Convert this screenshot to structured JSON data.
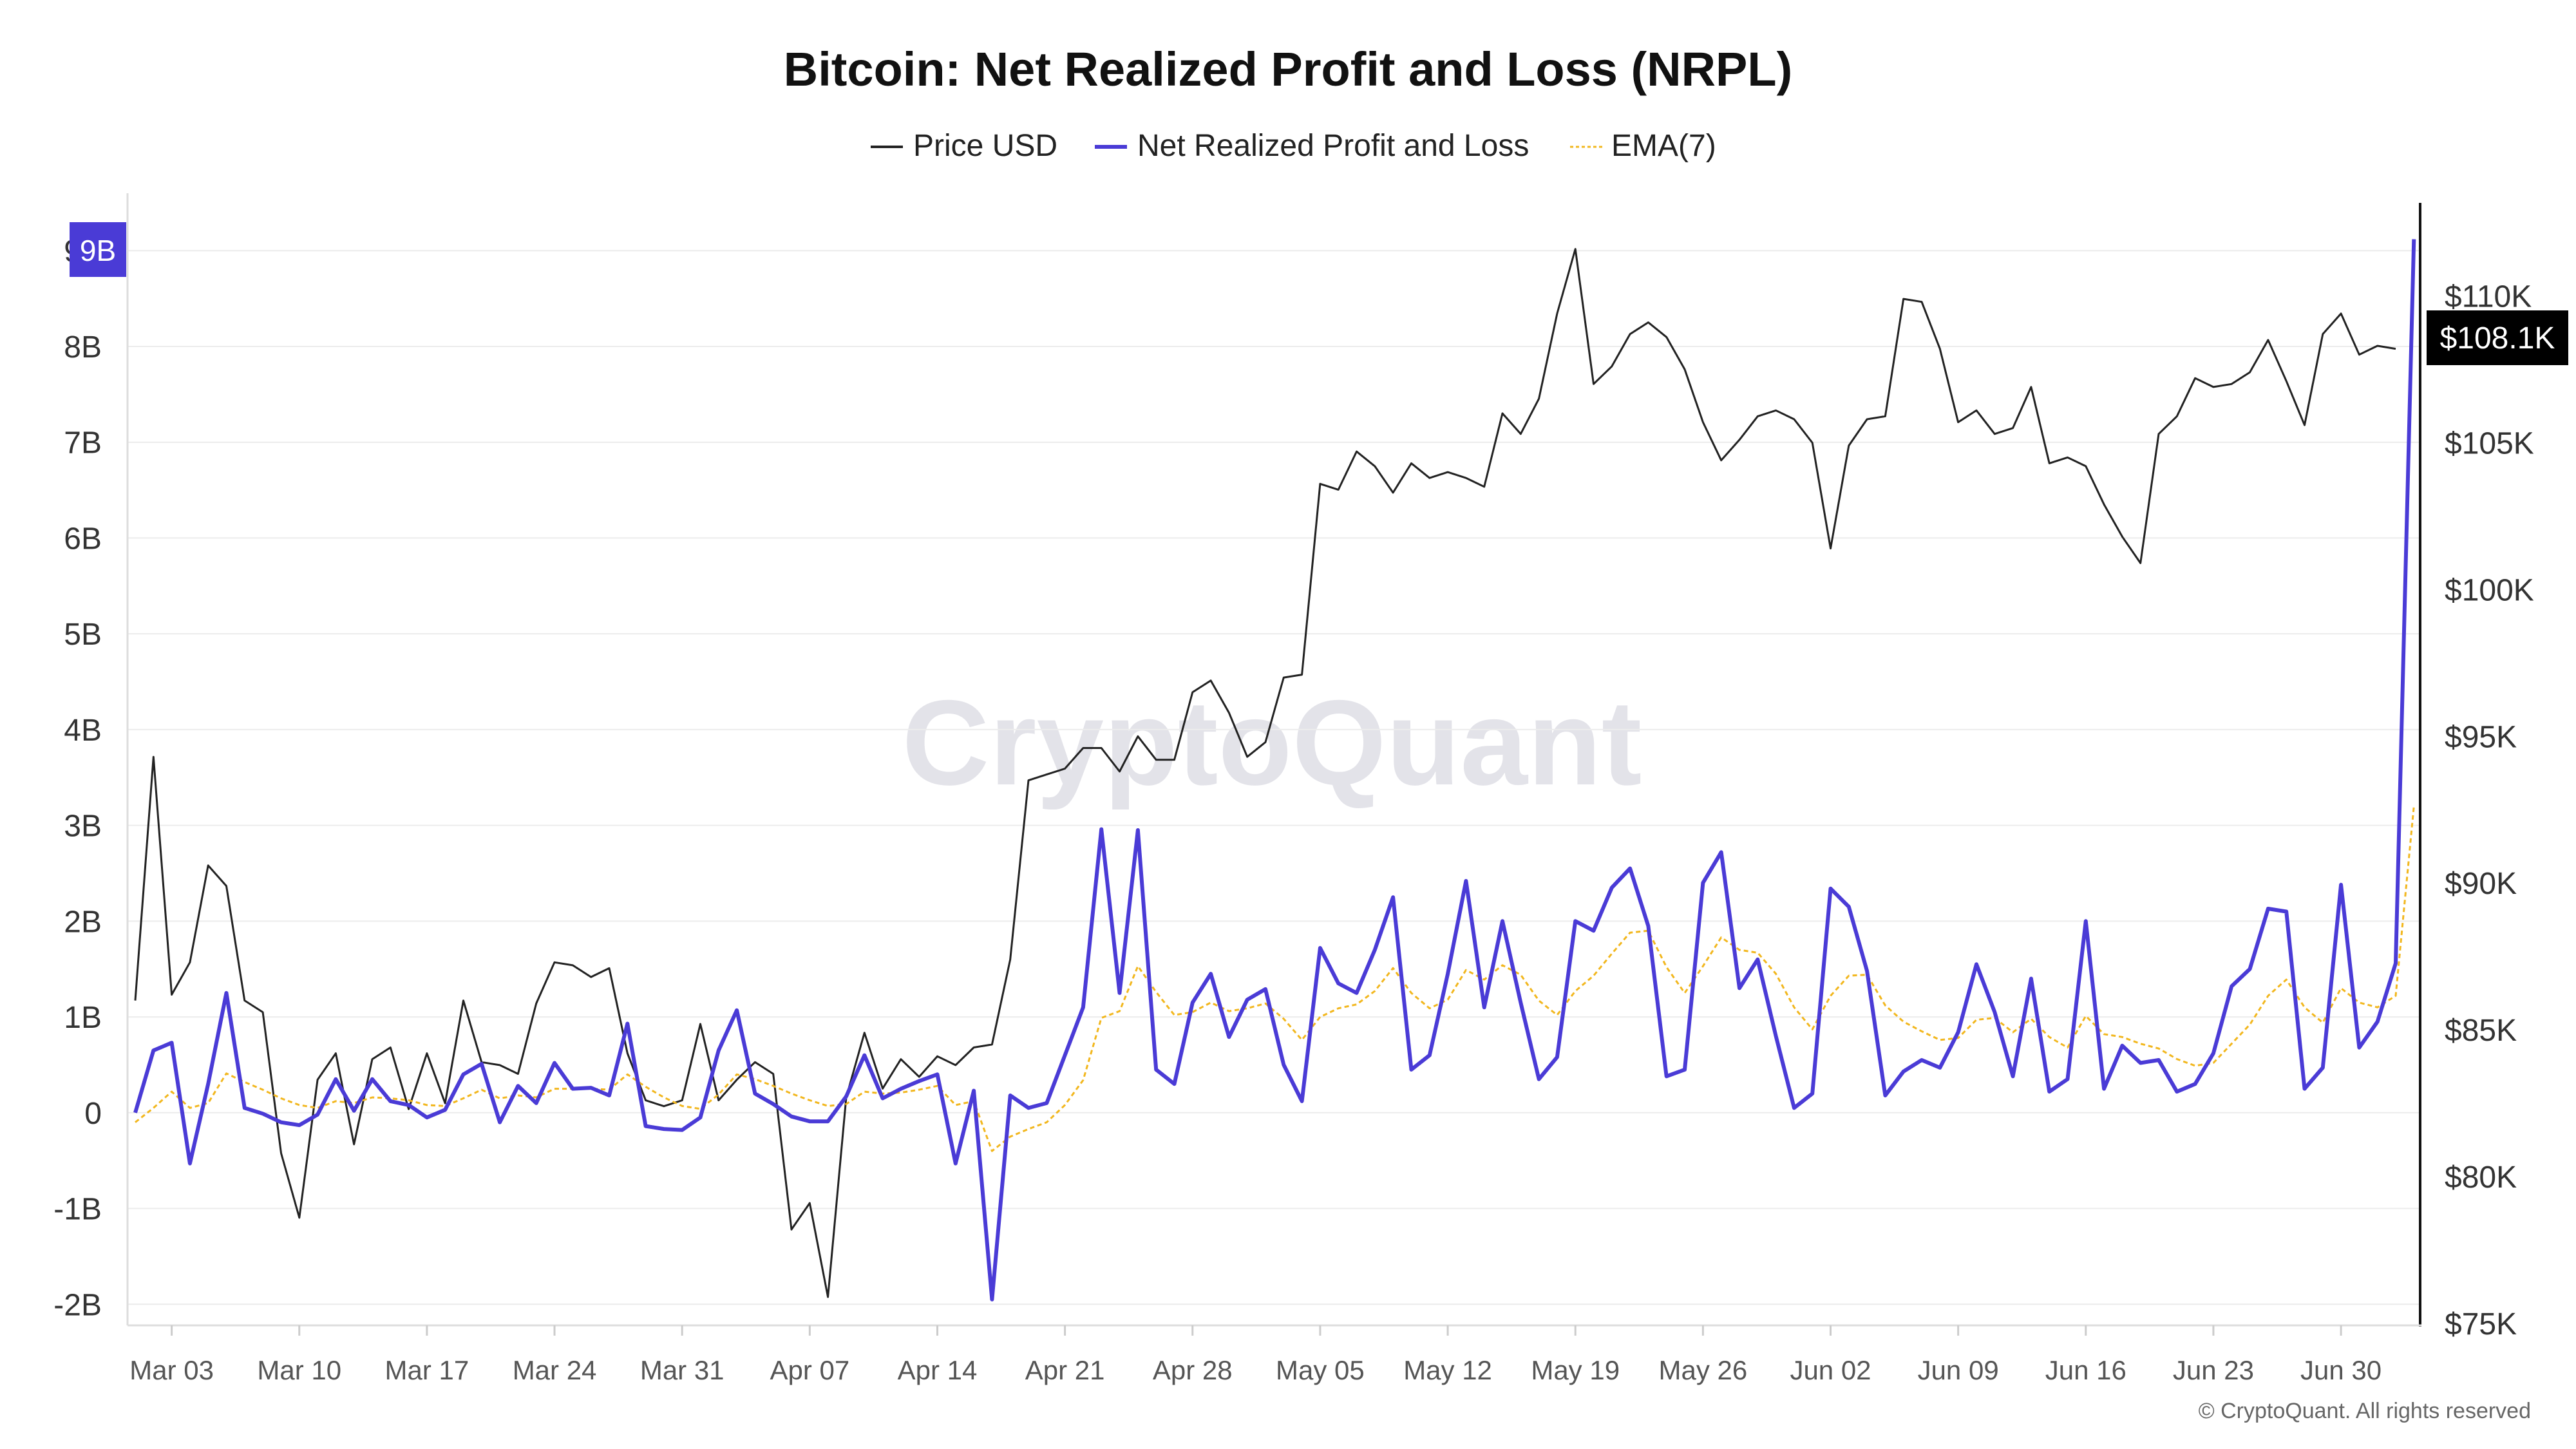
{
  "title": "Bitcoin: Net Realized Profit and Loss (NRPL)",
  "watermark": "CryptoQuant",
  "copyright": "© CryptoQuant. All rights reserved",
  "colors": {
    "price": "#222222",
    "nrpl": "#4a3bd6",
    "ema": "#f2b71e",
    "grid": "#ececec",
    "badge_price": "#000000",
    "badge_nrpl": "#4a3bd6"
  },
  "chart_data": {
    "type": "line",
    "title": "Bitcoin: Net Realized Profit and Loss (NRPL)",
    "legend_position": "top-center",
    "grid": true,
    "x_start": "Mar 01",
    "x_end": "Jul 06",
    "x_ticks": [
      "Mar 03",
      "Mar 10",
      "Mar 17",
      "Mar 24",
      "Mar 31",
      "Apr 07",
      "Apr 14",
      "Apr 21",
      "Apr 28",
      "May 05",
      "May 12",
      "May 19",
      "May 26",
      "Jun 02",
      "Jun 09",
      "Jun 16",
      "Jun 23",
      "Jun 30"
    ],
    "y_left": {
      "ylim": [
        -2.2,
        9.6
      ],
      "ticks": [
        -2,
        -1,
        0,
        1,
        2,
        3,
        4,
        5,
        6,
        7,
        8,
        9
      ],
      "tick_labels": [
        "-2B",
        "-1B",
        "0",
        "1B",
        "2B",
        "3B",
        "4B",
        "5B",
        "6B",
        "7B",
        "8B",
        "9B"
      ],
      "unit": "B"
    },
    "y_right": {
      "ylim": [
        75000,
        113500
      ],
      "ticks": [
        75000,
        80000,
        85000,
        90000,
        95000,
        100000,
        105000,
        110000
      ],
      "tick_labels": [
        "$75K",
        "$80K",
        "$85K",
        "$90K",
        "$95K",
        "$100K",
        "$105K",
        "$110K"
      ]
    },
    "badges": {
      "nrpl_current": "9B",
      "price_current": "$108.1K"
    },
    "series": [
      {
        "name": "Price USD",
        "axis": "right",
        "values": [
          86000,
          94300,
          86200,
          87300,
          90600,
          89900,
          86000,
          85600,
          80800,
          78600,
          83300,
          84200,
          81100,
          84000,
          84400,
          82300,
          84200,
          82500,
          86000,
          83900,
          83800,
          83500,
          85900,
          87300,
          87200,
          86800,
          87100,
          84200,
          82600,
          82400,
          82600,
          85200,
          82600,
          83300,
          83900,
          83500,
          78200,
          79100,
          75900,
          82700,
          84900,
          83000,
          84000,
          83400,
          84100,
          83800,
          84400,
          84500,
          87400,
          93500,
          93700,
          93900,
          94600,
          94600,
          93800,
          95000,
          94200,
          94200,
          96500,
          96900,
          95800,
          94300,
          94800,
          97000,
          97100,
          103600,
          103400,
          104700,
          104200,
          103300,
          104300,
          103800,
          104000,
          103800,
          103500,
          106000,
          105300,
          106500,
          109400,
          111600,
          107000,
          107600,
          108700,
          109100,
          108600,
          107500,
          105700,
          104400,
          105100,
          105900,
          106100,
          105800,
          105000,
          101400,
          104900,
          105800,
          105900,
          109900,
          109800,
          108200,
          105700,
          106100,
          105300,
          105500,
          106900,
          104300,
          104500,
          104200,
          102900,
          101800,
          100900,
          105300,
          105900,
          107200,
          106900,
          107000,
          107400,
          108500,
          107100,
          105600,
          108700,
          109400,
          108000,
          108300,
          108200
        ]
      },
      {
        "name": "Net Realized Profit and Loss",
        "axis": "left",
        "values": [
          0.0,
          0.65,
          0.73,
          -0.53,
          0.3,
          1.25,
          0.05,
          -0.01,
          -0.1,
          -0.13,
          -0.02,
          0.35,
          0.02,
          0.35,
          0.12,
          0.08,
          -0.05,
          0.03,
          0.4,
          0.51,
          -0.1,
          0.28,
          0.1,
          0.52,
          0.25,
          0.26,
          0.18,
          0.93,
          -0.14,
          -0.17,
          -0.18,
          -0.05,
          0.65,
          1.07,
          0.2,
          0.09,
          -0.04,
          -0.09,
          -0.09,
          0.17,
          0.6,
          0.15,
          0.25,
          0.33,
          0.4,
          -0.53,
          0.23,
          -1.95,
          0.18,
          0.05,
          0.1,
          0.6,
          1.1,
          2.96,
          1.25,
          2.95,
          0.45,
          0.3,
          1.15,
          1.45,
          0.79,
          1.18,
          1.29,
          0.5,
          0.12,
          1.72,
          1.35,
          1.25,
          1.7,
          2.25,
          0.45,
          0.6,
          1.45,
          2.42,
          1.1,
          2.0,
          1.15,
          0.35,
          0.58,
          2.0,
          1.9,
          2.35,
          2.55,
          1.95,
          0.38,
          0.45,
          2.4,
          2.72,
          1.3,
          1.6,
          0.8,
          0.05,
          0.2,
          2.34,
          2.15,
          1.48,
          0.18,
          0.43,
          0.55,
          0.47,
          0.84,
          1.55,
          1.05,
          0.38,
          1.4,
          0.22,
          0.35,
          2.0,
          0.25,
          0.7,
          0.52,
          0.55,
          0.22,
          0.3,
          0.62,
          1.32,
          1.5,
          2.13,
          2.1,
          0.25,
          0.47,
          2.38,
          0.68,
          0.95,
          1.56,
          9.12
        ]
      },
      {
        "name": "EMA(7)",
        "axis": "left",
        "values": [
          -0.1,
          0.05,
          0.22,
          0.05,
          0.1,
          0.41,
          0.32,
          0.24,
          0.15,
          0.08,
          0.05,
          0.12,
          0.1,
          0.16,
          0.15,
          0.13,
          0.08,
          0.07,
          0.15,
          0.24,
          0.15,
          0.18,
          0.16,
          0.25,
          0.25,
          0.25,
          0.24,
          0.4,
          0.27,
          0.16,
          0.07,
          0.04,
          0.19,
          0.4,
          0.35,
          0.28,
          0.2,
          0.13,
          0.07,
          0.09,
          0.22,
          0.2,
          0.21,
          0.24,
          0.28,
          0.08,
          0.12,
          -0.4,
          -0.25,
          -0.17,
          -0.1,
          0.08,
          0.34,
          0.99,
          1.06,
          1.53,
          1.26,
          1.02,
          1.05,
          1.15,
          1.06,
          1.09,
          1.14,
          0.98,
          0.76,
          1.0,
          1.09,
          1.13,
          1.27,
          1.51,
          1.25,
          1.09,
          1.18,
          1.49,
          1.39,
          1.54,
          1.44,
          1.17,
          1.02,
          1.27,
          1.43,
          1.66,
          1.88,
          1.9,
          1.52,
          1.25,
          1.53,
          1.83,
          1.7,
          1.67,
          1.45,
          1.1,
          0.87,
          1.22,
          1.43,
          1.44,
          1.12,
          0.95,
          0.85,
          0.76,
          0.78,
          0.97,
          0.99,
          0.84,
          0.98,
          0.79,
          0.68,
          1.01,
          0.82,
          0.79,
          0.72,
          0.67,
          0.56,
          0.49,
          0.52,
          0.72,
          0.92,
          1.22,
          1.39,
          1.1,
          0.94,
          1.3,
          1.15,
          1.1,
          1.22,
          3.2
        ]
      }
    ]
  }
}
